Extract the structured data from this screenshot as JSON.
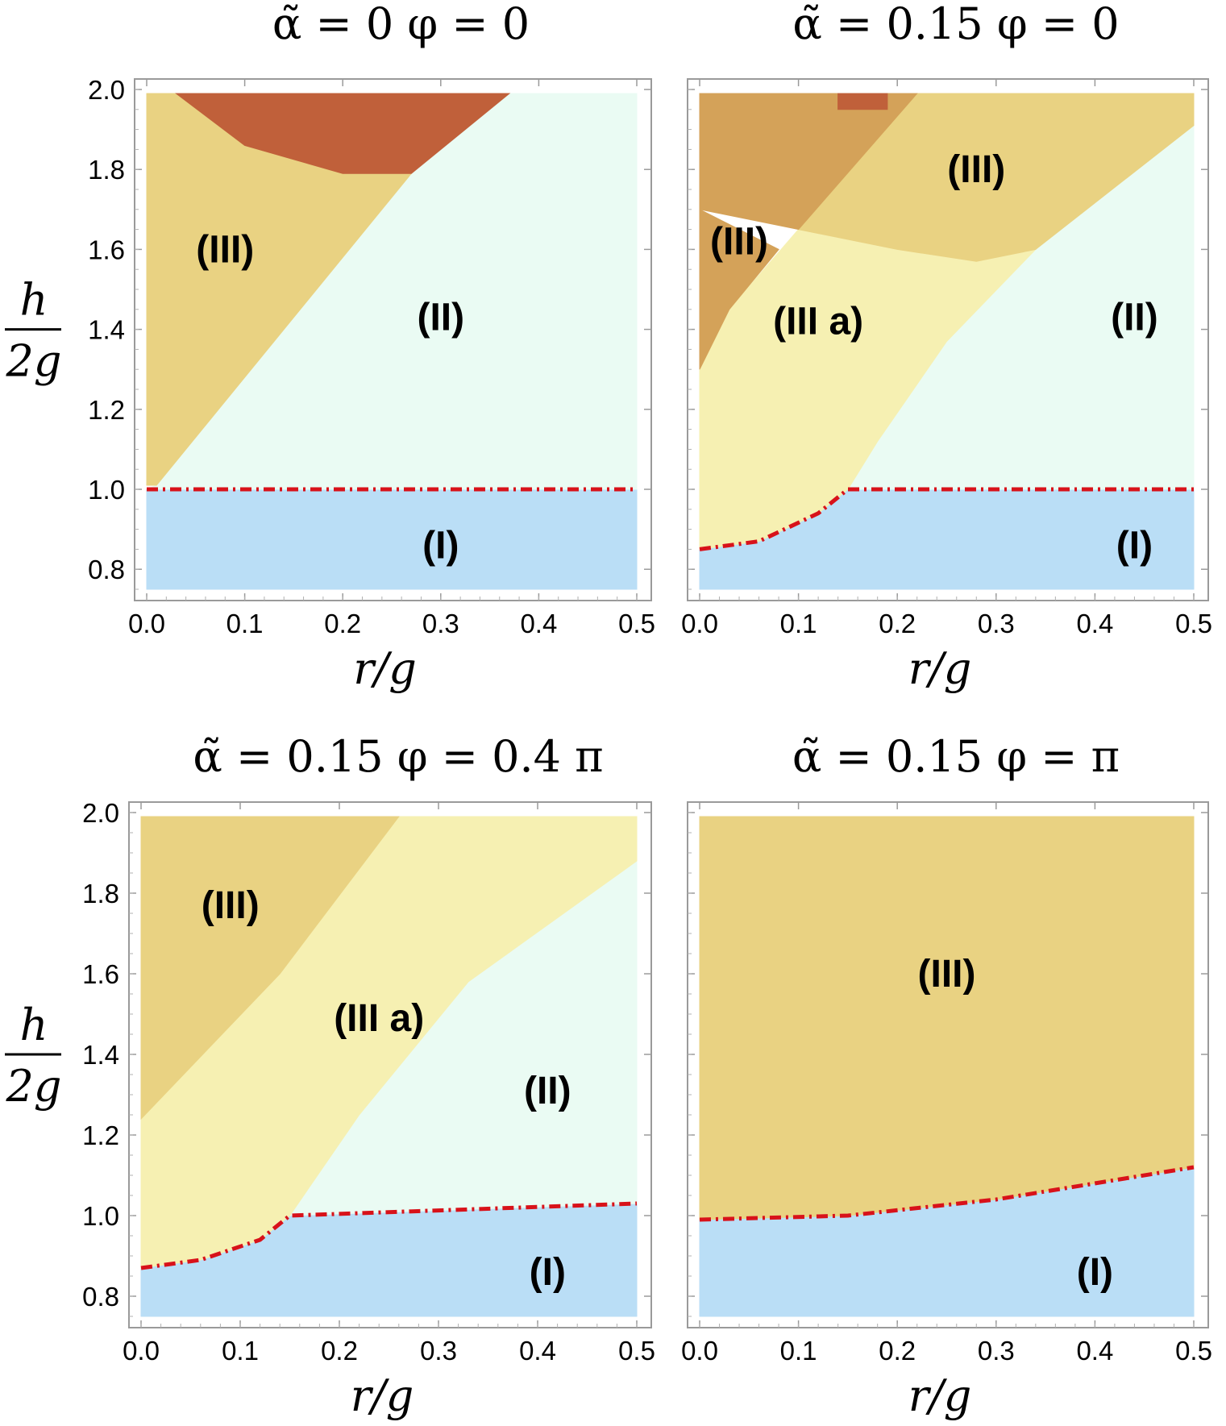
{
  "figure": {
    "x_axis_label": "r/g",
    "y_axis_label_num": "h",
    "y_axis_label_den": "2g"
  },
  "chart_data": [
    {
      "type": "heatmap",
      "title": "α̃ = 0    φ = 0",
      "xlabel": "r/g",
      "ylabel": "h/2g",
      "xlim": [
        0,
        0.5
      ],
      "ylim": [
        0.75,
        2.0
      ],
      "x_ticks": [
        "0.0",
        "0.1",
        "0.2",
        "0.3",
        "0.4",
        "0.5"
      ],
      "y_ticks": [
        "0.8",
        "1.0",
        "1.2",
        "1.4",
        "1.6",
        "1.8",
        "2.0"
      ],
      "regions": [
        {
          "label": "(I)",
          "color": "#BADEF6",
          "label_at": [
            0.3,
            0.86
          ],
          "polygon": [
            [
              0,
              0.75
            ],
            [
              0.5,
              0.75
            ],
            [
              0.5,
              1.0
            ],
            [
              0,
              1.0
            ]
          ]
        },
        {
          "label": "(II)",
          "color": "#EAFBF3",
          "label_at": [
            0.3,
            1.43
          ],
          "polygon": [
            [
              0,
              1.0
            ],
            [
              0.5,
              1.0
            ],
            [
              0.5,
              1.99
            ],
            [
              0.37,
              1.99
            ],
            [
              0.28,
              1.84
            ],
            [
              0.19,
              1.67
            ],
            [
              0.01,
              1.01
            ]
          ]
        },
        {
          "label": "(III)",
          "color": "#E9D282",
          "label_at": [
            0.08,
            1.6
          ],
          "polygon": [
            [
              0,
              1.01
            ],
            [
              0.01,
              1.01
            ],
            [
              0.27,
              1.79
            ],
            [
              0.2,
              1.79
            ],
            [
              0.1,
              1.86
            ],
            [
              0.03,
              1.99
            ],
            [
              0,
              1.99
            ]
          ]
        },
        {
          "label": "",
          "color": "#C0603A",
          "label_at": null,
          "polygon": [
            [
              0.03,
              1.99
            ],
            [
              0.1,
              1.86
            ],
            [
              0.2,
              1.79
            ],
            [
              0.27,
              1.79
            ],
            [
              0.37,
              1.99
            ]
          ]
        }
      ],
      "boundary": [
        [
          0,
          1.0
        ],
        [
          0.5,
          1.0
        ]
      ]
    },
    {
      "type": "heatmap",
      "title": "α̃ = 0.15    φ = 0",
      "xlabel": "r/g",
      "ylabel": "h/2g",
      "xlim": [
        0,
        0.5
      ],
      "ylim": [
        0.75,
        2.0
      ],
      "x_ticks": [
        "0.0",
        "0.1",
        "0.2",
        "0.3",
        "0.4",
        "0.5"
      ],
      "y_ticks": [
        "0.8",
        "1.0",
        "1.2",
        "1.4",
        "1.6",
        "1.8",
        "2.0"
      ],
      "regions": [
        {
          "label": "(I)",
          "color": "#BADEF6",
          "label_at": [
            0.44,
            0.86
          ],
          "polygon": [
            [
              0,
              0.75
            ],
            [
              0.5,
              0.75
            ],
            [
              0.5,
              1.0
            ],
            [
              0.15,
              1.0
            ],
            [
              0.12,
              0.94
            ],
            [
              0.06,
              0.87
            ],
            [
              0,
              0.85
            ]
          ]
        },
        {
          "label": "(II)",
          "color": "#EAFBF3",
          "label_at": [
            0.44,
            1.43
          ],
          "polygon": [
            [
              0.15,
              1.0
            ],
            [
              0.5,
              1.0
            ],
            [
              0.5,
              1.91
            ],
            [
              0.34,
              1.6
            ],
            [
              0.25,
              1.37
            ],
            [
              0.18,
              1.12
            ]
          ]
        },
        {
          "label": "(III a)",
          "color": "#F6F0B2",
          "label_at": [
            0.12,
            1.42
          ],
          "polygon": [
            [
              0,
              0.85
            ],
            [
              0.06,
              0.87
            ],
            [
              0.12,
              0.94
            ],
            [
              0.15,
              1.0
            ],
            [
              0.18,
              1.12
            ],
            [
              0.25,
              1.37
            ],
            [
              0.34,
              1.6
            ],
            [
              0.28,
              1.57
            ],
            [
              0.2,
              1.6
            ],
            [
              0.1,
              1.65
            ],
            [
              0.03,
              1.45
            ],
            [
              0,
              1.3
            ]
          ]
        },
        {
          "label": "(III)",
          "color": "#E9D282",
          "label_at": [
            0.28,
            1.8
          ],
          "polygon": [
            [
              0.1,
              1.65
            ],
            [
              0.2,
              1.6
            ],
            [
              0.28,
              1.57
            ],
            [
              0.34,
              1.6
            ],
            [
              0.5,
              1.91
            ],
            [
              0.5,
              1.99
            ],
            [
              0.22,
              1.99
            ]
          ]
        },
        {
          "label": "(III)",
          "color": "#D4A259",
          "label_at": [
            0.04,
            1.62
          ],
          "polygon": [
            [
              0,
              1.3
            ],
            [
              0.03,
              1.45
            ],
            [
              0.08,
              1.6
            ],
            [
              0,
              1.7
            ]
          ]
        },
        {
          "label": "",
          "color": "#D4A259",
          "label_at": null,
          "polygon": [
            [
              0,
              1.7
            ],
            [
              0.1,
              1.65
            ],
            [
              0.22,
              1.99
            ],
            [
              0.19,
              1.99
            ],
            [
              0.19,
              1.95
            ],
            [
              0.14,
              1.95
            ],
            [
              0.14,
              1.99
            ],
            [
              0,
              1.99
            ]
          ]
        },
        {
          "label": "",
          "color": "#C0603A",
          "label_at": null,
          "polygon": [
            [
              0.14,
              1.95
            ],
            [
              0.19,
              1.95
            ],
            [
              0.19,
              1.99
            ],
            [
              0.14,
              1.99
            ]
          ]
        }
      ],
      "boundary": [
        [
          0,
          0.85
        ],
        [
          0.06,
          0.87
        ],
        [
          0.12,
          0.94
        ],
        [
          0.15,
          1.0
        ],
        [
          0.5,
          1.0
        ]
      ]
    },
    {
      "type": "heatmap",
      "title": "α̃ = 0.15    φ = 0.4 π",
      "xlabel": "r/g",
      "ylabel": "h/2g",
      "xlim": [
        0,
        0.5
      ],
      "ylim": [
        0.75,
        2.0
      ],
      "x_ticks": [
        "0.0",
        "0.1",
        "0.2",
        "0.3",
        "0.4",
        "0.5"
      ],
      "y_ticks": [
        "0.8",
        "1.0",
        "1.2",
        "1.4",
        "1.6",
        "1.8",
        "2.0"
      ],
      "regions": [
        {
          "label": "(I)",
          "color": "#BADEF6",
          "label_at": [
            0.41,
            0.86
          ],
          "polygon": [
            [
              0,
              0.75
            ],
            [
              0.5,
              0.75
            ],
            [
              0.5,
              1.03
            ],
            [
              0.15,
              1.0
            ],
            [
              0.12,
              0.94
            ],
            [
              0.06,
              0.89
            ],
            [
              0,
              0.87
            ]
          ]
        },
        {
          "label": "(II)",
          "color": "#EAFBF3",
          "label_at": [
            0.41,
            1.31
          ],
          "polygon": [
            [
              0.15,
              1.0
            ],
            [
              0.5,
              1.03
            ],
            [
              0.5,
              1.88
            ],
            [
              0.33,
              1.58
            ],
            [
              0.22,
              1.25
            ]
          ]
        },
        {
          "label": "(III a)",
          "color": "#F6F0B2",
          "label_at": [
            0.24,
            1.49
          ],
          "polygon": [
            [
              0,
              0.87
            ],
            [
              0.06,
              0.89
            ],
            [
              0.12,
              0.94
            ],
            [
              0.15,
              1.0
            ],
            [
              0.22,
              1.25
            ],
            [
              0.33,
              1.58
            ],
            [
              0.5,
              1.88
            ],
            [
              0.5,
              1.99
            ],
            [
              0.26,
              1.99
            ],
            [
              0.14,
              1.6
            ],
            [
              0,
              1.24
            ]
          ]
        },
        {
          "label": "(III)",
          "color": "#E9D282",
          "label_at": [
            0.09,
            1.77
          ],
          "polygon": [
            [
              0,
              1.24
            ],
            [
              0.14,
              1.6
            ],
            [
              0.26,
              1.99
            ],
            [
              0,
              1.99
            ]
          ]
        }
      ],
      "boundary": [
        [
          0,
          0.87
        ],
        [
          0.06,
          0.89
        ],
        [
          0.12,
          0.94
        ],
        [
          0.15,
          1.0
        ],
        [
          0.5,
          1.03
        ]
      ]
    },
    {
      "type": "heatmap",
      "title": "α̃ = 0.15    φ = π",
      "xlabel": "r/g",
      "ylabel": "h/2g",
      "xlim": [
        0,
        0.5
      ],
      "ylim": [
        0.75,
        2.0
      ],
      "x_ticks": [
        "0.0",
        "0.1",
        "0.2",
        "0.3",
        "0.4",
        "0.5"
      ],
      "y_ticks": [
        "0.8",
        "1.0",
        "1.2",
        "1.4",
        "1.6",
        "1.8",
        "2.0"
      ],
      "regions": [
        {
          "label": "(I)",
          "color": "#BADEF6",
          "label_at": [
            0.4,
            0.86
          ],
          "polygon": [
            [
              0,
              0.75
            ],
            [
              0.5,
              0.75
            ],
            [
              0.5,
              1.12
            ],
            [
              0.3,
              1.04
            ],
            [
              0.15,
              1.0
            ],
            [
              0,
              0.99
            ]
          ]
        },
        {
          "label": "(III)",
          "color": "#E9D282",
          "label_at": [
            0.25,
            1.6
          ],
          "polygon": [
            [
              0,
              0.99
            ],
            [
              0.15,
              1.0
            ],
            [
              0.3,
              1.04
            ],
            [
              0.5,
              1.12
            ],
            [
              0.5,
              1.99
            ],
            [
              0,
              1.99
            ]
          ]
        }
      ],
      "boundary": [
        [
          0,
          0.99
        ],
        [
          0.15,
          1.0
        ],
        [
          0.3,
          1.04
        ],
        [
          0.5,
          1.12
        ]
      ]
    }
  ]
}
